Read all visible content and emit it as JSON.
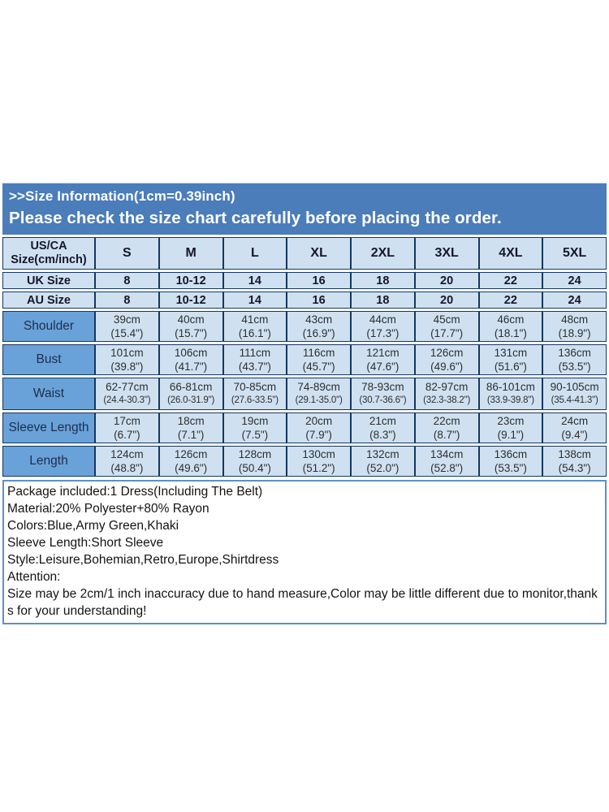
{
  "banner": {
    "line1": ">>Size Information(1cm=0.39inch)",
    "line2": "Please check the size chart carefully before placing the order."
  },
  "table": {
    "corner": {
      "line1": "US/CA",
      "line2": "Size(cm/inch)"
    },
    "sizes": [
      "S",
      "M",
      "L",
      "XL",
      "2XL",
      "3XL",
      "4XL",
      "5XL"
    ],
    "uk": {
      "label": "UK Size",
      "values": [
        "8",
        "10-12",
        "14",
        "16",
        "18",
        "20",
        "22",
        "24"
      ]
    },
    "au": {
      "label": "AU Size",
      "values": [
        "8",
        "10-12",
        "14",
        "16",
        "18",
        "20",
        "22",
        "24"
      ]
    },
    "rows": [
      {
        "label": "Shoulder",
        "cm": [
          "39cm",
          "40cm",
          "41cm",
          "43cm",
          "44cm",
          "45cm",
          "46cm",
          "48cm"
        ],
        "inch": [
          "(15.4\")",
          "(15.7\")",
          "(16.1\")",
          "(16.9\")",
          "(17.3\")",
          "(17.7\")",
          "(18.1\")",
          "(18.9\")"
        ]
      },
      {
        "label": "Bust",
        "cm": [
          "101cm",
          "106cm",
          "111cm",
          "116cm",
          "121cm",
          "126cm",
          "131cm",
          "136cm"
        ],
        "inch": [
          "(39.8\")",
          "(41.7\")",
          "(43.7\")",
          "(45.7\")",
          "(47.6\")",
          "(49.6\")",
          "(51.6\")",
          "(53.5\")"
        ]
      },
      {
        "label": "Waist",
        "cm": [
          "62-77cm",
          "66-81cm",
          "70-85cm",
          "74-89cm",
          "78-93cm",
          "82-97cm",
          "86-101cm",
          "90-105cm"
        ],
        "inch": [
          "(24.4-30.3\")",
          "(26.0-31.9\")",
          "(27.6-33.5\")",
          "(29.1-35.0\")",
          "(30.7-36.6\")",
          "(32.3-38.2\")",
          "(33.9-39.8\")",
          "(35.4-41.3\")"
        ]
      },
      {
        "label": "Sleeve Length",
        "cm": [
          "17cm",
          "18cm",
          "19cm",
          "20cm",
          "21cm",
          "22cm",
          "23cm",
          "24cm"
        ],
        "inch": [
          "(6.7\")",
          "(7.1\")",
          "(7.5\")",
          "(7.9\")",
          "(8.3\")",
          "(8.7\")",
          "(9.1\")",
          "(9.4\")"
        ]
      },
      {
        "label": "Length",
        "cm": [
          "124cm",
          "126cm",
          "128cm",
          "130cm",
          "132cm",
          "134cm",
          "136cm",
          "138cm"
        ],
        "inch": [
          "(48.8\")",
          "(49.6\")",
          "(50.4\")",
          "(51.2\")",
          "(52.0\")",
          "(52.8\")",
          "(53.5\")",
          "(54.3\")"
        ]
      }
    ]
  },
  "details": {
    "lines": [
      "Package included:1 Dress(Including The Belt)",
      "Material:20% Polyester+80% Rayon",
      "Colors:Blue,Army Green,Khaki",
      "Sleeve Length:Short Sleeve",
      "Style:Leisure,Bohemian,Retro,Europe,Shirtdress",
      "Attention:",
      "Size may be 2cm/1 inch inaccuracy due to hand measure,Color may be little different due to monitor,thanks for your understanding!"
    ]
  },
  "colors": {
    "banner_bg": "#4a7dba",
    "header_cell_bg": "#cfe1f1",
    "label_cell_bg": "#69a2d8",
    "table_border": "#17375e",
    "details_border": "#5e90c6",
    "banner_text": "#ffffff"
  }
}
